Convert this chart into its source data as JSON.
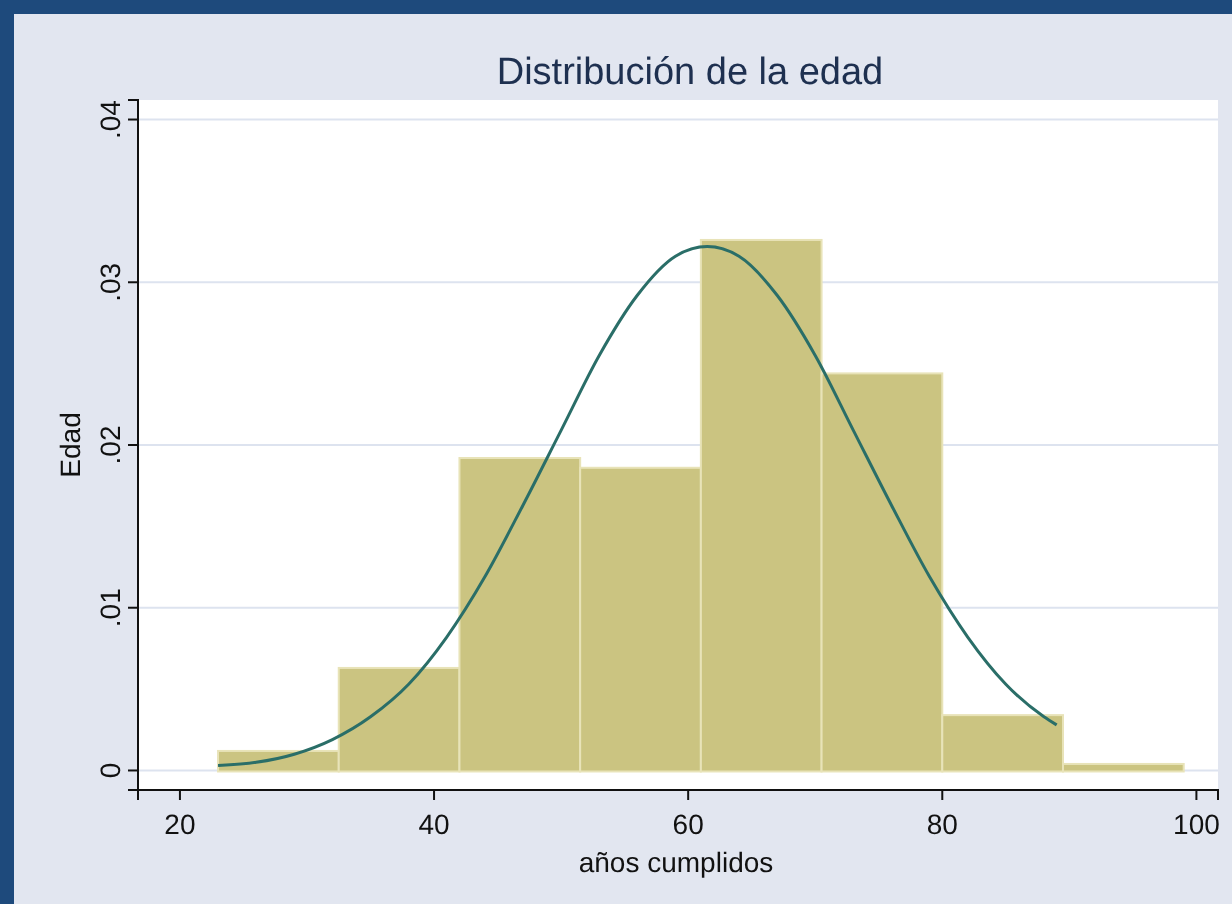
{
  "chart_data": {
    "type": "histogram",
    "title": "Distribución de la edad",
    "xlabel": "años cumplidos",
    "ylabel": "Edad",
    "bins": [
      23,
      32.5,
      42,
      51.5,
      61,
      70.5,
      80,
      89.5,
      99
    ],
    "values": [
      0.0012,
      0.0063,
      0.0192,
      0.0186,
      0.0326,
      0.0244,
      0.0034,
      0.0004
    ],
    "color": "#cbc481",
    "series": [
      {
        "type": "line",
        "color": "#2a6e68",
        "x": [
          23,
          26,
          29,
          32,
          35,
          38,
          41,
          44,
          47,
          50,
          53,
          56,
          59,
          61.5,
          64,
          67,
          70,
          73,
          76,
          79,
          82,
          85,
          88,
          89
        ],
        "values": [
          0.0003,
          0.0005,
          0.001,
          0.0019,
          0.0033,
          0.0053,
          0.0082,
          0.0119,
          0.0163,
          0.0209,
          0.0255,
          0.0292,
          0.0316,
          0.0322,
          0.0316,
          0.0292,
          0.0255,
          0.0209,
          0.0163,
          0.0119,
          0.0082,
          0.0053,
          0.0033,
          0.0028
        ]
      }
    ],
    "xlim": [
      16.7,
      101.7
    ],
    "xticks": [
      20,
      40,
      60,
      80,
      100
    ],
    "ylim": [
      -0.0012,
      0.0412
    ],
    "yticks": [
      0,
      {
        "value": 0.01,
        "label": ".01"
      },
      {
        "value": 0.02,
        "label": ".02"
      },
      {
        "value": 0.03,
        "label": ".03"
      },
      {
        "value": 0.04,
        "label": ".04"
      }
    ],
    "grid": "y"
  }
}
